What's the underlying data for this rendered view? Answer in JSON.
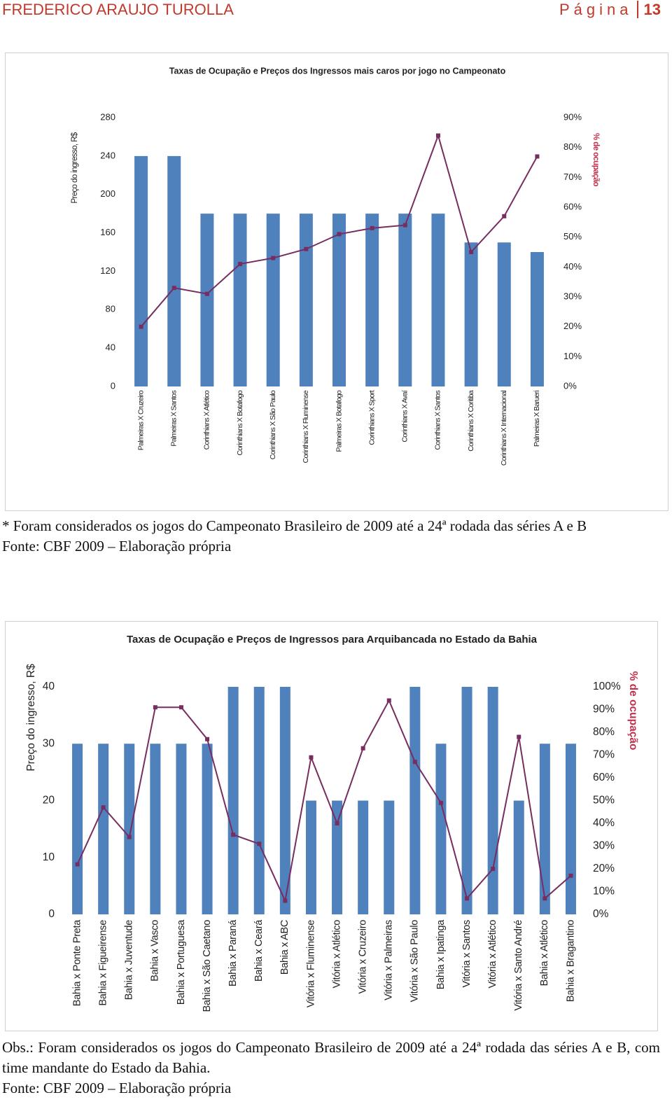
{
  "header": {
    "author": "FREDERICO ARAUJO TUROLLA",
    "page_label": "Página",
    "page_number": "13"
  },
  "chart_data": [
    {
      "type": "combo",
      "title": "Taxas de Ocupação e Preços dos Ingressos mais caros por jogo no Campeonato",
      "ylabel": "Preço do ingresso, R$",
      "y2label": "% de ocupação",
      "categories": [
        "Palmeiras X Cruzeiro",
        "Palmeiras X Santos",
        "Corinthians X Atlético",
        "Corinthians X Botafogo",
        "Corinthians X São Paulo",
        "Corinthians X Fluminense",
        "Palmeiras X Botafogo",
        "Corinthians X Sport",
        "Corinthians X Avaí",
        "Corinthians X Santos",
        "Corinthians X Coritiba",
        "Corinthians X Internacional",
        "Palmeiras X Barueri"
      ],
      "series": [
        {
          "type": "bar",
          "color": "#4f81bd",
          "values": [
            240,
            240,
            180,
            180,
            180,
            180,
            180,
            180,
            180,
            180,
            150,
            150,
            140
          ]
        },
        {
          "type": "line",
          "axis": "y2",
          "color": "#772d5f",
          "values": [
            20,
            33,
            31,
            41,
            43,
            46,
            51,
            53,
            54,
            84,
            45,
            57,
            77
          ]
        }
      ],
      "ylim": [
        0,
        280
      ],
      "yticks": [
        0,
        40,
        80,
        120,
        160,
        200,
        240,
        280
      ],
      "y2lim": [
        0,
        90
      ],
      "y2ticks": [
        {
          "value": 0,
          "label": "0%"
        },
        {
          "value": 10,
          "label": "10%"
        },
        {
          "value": 20,
          "label": "20%"
        },
        {
          "value": 30,
          "label": "30%"
        },
        {
          "value": 40,
          "label": "40%"
        },
        {
          "value": 50,
          "label": "50%"
        },
        {
          "value": 60,
          "label": "60%"
        },
        {
          "value": 70,
          "label": "70%"
        },
        {
          "value": 80,
          "label": "80%"
        },
        {
          "value": 90,
          "label": "90%"
        }
      ],
      "grid": false
    },
    {
      "type": "combo",
      "title": "Taxas de Ocupação e Preços de Ingressos para Arquibancada no Estado da Bahia",
      "ylabel": "Preço do ingresso, R$",
      "y2label": "% de ocupação",
      "categories": [
        "Bahia x Ponte Preta",
        "Bahia x Figueirense",
        "Bahia x Juventude",
        "Bahia x Vasco",
        "Bahia x Portuguesa",
        "Bahia x São Caetano",
        "Bahia x Paraná",
        "Bahia x Ceará",
        "Bahia x ABC",
        "Vitória x Fluminense",
        "Vitória x Atlético",
        "Vitória x Cruzeiro",
        "Vitória x Palmeiras",
        "Vitória x São Paulo",
        "Bahia x Ipatinga",
        "Vitória x Santos",
        "Vitória x Atlético",
        "Vitória x Santo André",
        "Bahia x Atlético",
        "Bahia x Bragantino"
      ],
      "series": [
        {
          "type": "bar",
          "color": "#4f81bd",
          "values": [
            30,
            30,
            30,
            30,
            30,
            30,
            40,
            40,
            40,
            20,
            20,
            20,
            20,
            40,
            30,
            40,
            40,
            20,
            30,
            30
          ]
        },
        {
          "type": "line",
          "axis": "y2",
          "color": "#772d5f",
          "values": [
            22,
            47,
            34,
            91,
            91,
            77,
            35,
            31,
            6,
            69,
            40,
            73,
            94,
            67,
            49,
            7,
            20,
            78,
            7,
            17
          ]
        }
      ],
      "ylim": [
        0,
        40
      ],
      "yticks": [
        0,
        10,
        20,
        30,
        40
      ],
      "y2lim": [
        0,
        100
      ],
      "y2ticks": [
        {
          "value": 0,
          "label": "0%"
        },
        {
          "value": 10,
          "label": "10%"
        },
        {
          "value": 20,
          "label": "20%"
        },
        {
          "value": 30,
          "label": "30%"
        },
        {
          "value": 40,
          "label": "40%"
        },
        {
          "value": 50,
          "label": "50%"
        },
        {
          "value": 60,
          "label": "60%"
        },
        {
          "value": 70,
          "label": "70%"
        },
        {
          "value": 80,
          "label": "80%"
        },
        {
          "value": 90,
          "label": "90%"
        },
        {
          "value": 100,
          "label": "100%"
        }
      ],
      "grid": false
    }
  ],
  "notes": [
    {
      "text": "* Foram considerados os jogos do Campeonato Brasileiro de 2009 até a 24ª rodada das séries A e B",
      "source": "Fonte: CBF 2009 – Elaboração própria"
    },
    {
      "text": "Obs.: Foram considerados os jogos do Campeonato Brasileiro de 2009 até a 24ª rodada das séries A e B, com time mandante do Estado da Bahia.",
      "source": "Fonte: CBF 2009 – Elaboração própria"
    }
  ]
}
